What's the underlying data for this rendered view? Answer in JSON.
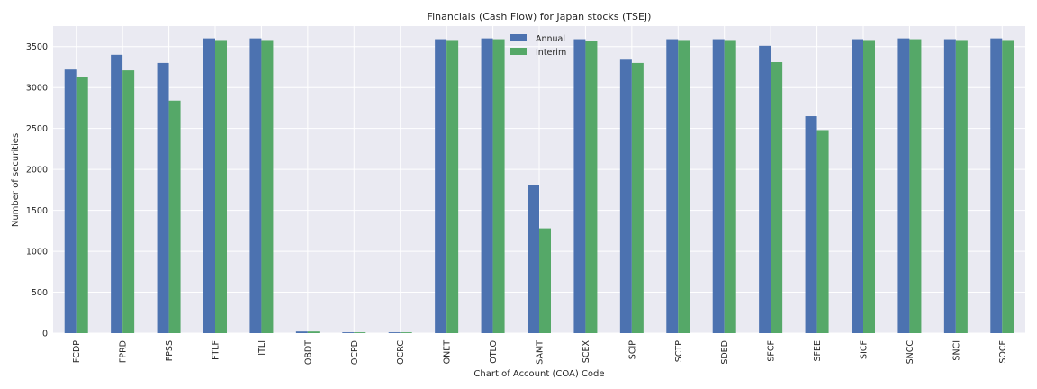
{
  "chart_data": {
    "type": "bar",
    "title": "Financials (Cash Flow) for Japan stocks (TSEJ)",
    "xlabel": "Chart of Account (COA) Code",
    "ylabel": "Number of securities",
    "ylim": [
      0,
      3750
    ],
    "yticks": [
      "0",
      "500",
      "1000",
      "1500",
      "2000",
      "2500",
      "3000",
      "3500"
    ],
    "grid": true,
    "legend_position": "top-center",
    "categories": [
      "FCDP",
      "FPRD",
      "FPSS",
      "FTLF",
      "ITLI",
      "OBDT",
      "OCPD",
      "OCRC",
      "ONET",
      "OTLO",
      "SAMT",
      "SCEX",
      "SCIP",
      "SCTP",
      "SDED",
      "SFCF",
      "SFEE",
      "SICF",
      "SNCC",
      "SNCI",
      "SOCF"
    ],
    "series": [
      {
        "name": "Annual",
        "color": "#4c72b0",
        "values": [
          3220,
          3400,
          3300,
          3600,
          3600,
          20,
          10,
          10,
          3590,
          3600,
          1810,
          3590,
          3340,
          3590,
          3590,
          3510,
          2650,
          3590,
          3600,
          3590,
          3600
        ]
      },
      {
        "name": "Interim",
        "color": "#55a868",
        "values": [
          3130,
          3210,
          2840,
          3580,
          3580,
          20,
          10,
          10,
          3580,
          3590,
          1280,
          3570,
          3300,
          3580,
          3580,
          3310,
          2480,
          3580,
          3590,
          3580,
          3580
        ]
      }
    ]
  },
  "style": {
    "plot_background": "#eaeaf2",
    "grid_color": "#ffffff"
  }
}
